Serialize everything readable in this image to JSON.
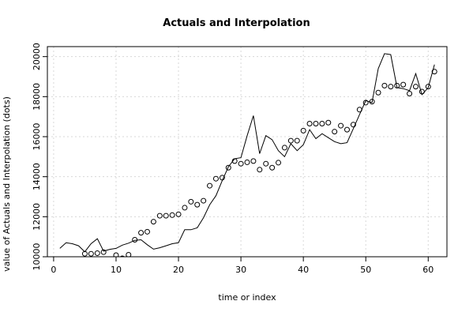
{
  "chart_data": {
    "type": "line",
    "title": "Actuals and Interpolation",
    "xlabel": "time or index",
    "ylabel": "value of Actuals and Interpolation (dots)",
    "xlim": [
      -1,
      63
    ],
    "ylim": [
      10000,
      20500
    ],
    "xticks": [
      0,
      10,
      20,
      30,
      40,
      50,
      60
    ],
    "yticks": [
      10000,
      12000,
      14000,
      16000,
      18000,
      20000
    ],
    "grid": true,
    "series": [
      {
        "style": "line",
        "x": [
          1,
          2,
          3,
          4,
          5,
          6,
          7,
          8,
          9,
          10,
          11,
          12,
          13,
          14,
          15,
          16,
          17,
          18,
          19,
          20,
          21,
          22,
          23,
          24,
          25,
          26,
          27,
          28,
          29,
          30,
          31,
          32,
          33,
          34,
          35,
          36,
          37,
          38,
          39,
          40,
          41,
          42,
          43,
          44,
          45,
          46,
          47,
          48,
          49,
          50,
          51,
          52,
          53,
          54,
          55,
          56,
          57,
          58,
          59,
          60,
          61
        ],
        "y": [
          10420,
          10700,
          10650,
          10550,
          10250,
          10650,
          10900,
          10280,
          10370,
          10420,
          10580,
          10680,
          10820,
          10850,
          10600,
          10380,
          10450,
          10550,
          10650,
          10700,
          11350,
          11350,
          11450,
          11950,
          12600,
          13050,
          13800,
          14500,
          14900,
          14950,
          16050,
          17050,
          15150,
          16050,
          15850,
          15300,
          15000,
          15650,
          15300,
          15600,
          16350,
          15900,
          16150,
          15950,
          15750,
          15650,
          15700,
          16400,
          17100,
          17800,
          17700,
          19400,
          20150,
          20100,
          18450,
          18400,
          18300,
          19150,
          18100,
          18450,
          19600
        ]
      },
      {
        "style": "points",
        "x": [
          5,
          6,
          7,
          8,
          10,
          11,
          12,
          13,
          14,
          15,
          16,
          17,
          18,
          19,
          20,
          21,
          22,
          23,
          24,
          25,
          26,
          27,
          28,
          29,
          30,
          31,
          32,
          33,
          34,
          35,
          36,
          37,
          38,
          39,
          40,
          41,
          42,
          43,
          44,
          45,
          46,
          47,
          48,
          49,
          50,
          51,
          52,
          53,
          54,
          55,
          56,
          57,
          58,
          59,
          60,
          61
        ],
        "y": [
          10150,
          10150,
          10180,
          10230,
          10080,
          9920,
          10100,
          10850,
          11200,
          11250,
          11750,
          12050,
          12050,
          12080,
          12120,
          12450,
          12750,
          12600,
          12800,
          13550,
          13900,
          13950,
          14450,
          14780,
          14650,
          14720,
          14780,
          14350,
          14650,
          14450,
          14700,
          15450,
          15800,
          15800,
          16300,
          16650,
          16650,
          16650,
          16700,
          16250,
          16550,
          16350,
          16600,
          17350,
          17700,
          17750,
          18200,
          18550,
          18500,
          18550,
          18600,
          18150,
          18500,
          18250,
          18500,
          19250
        ]
      }
    ]
  }
}
